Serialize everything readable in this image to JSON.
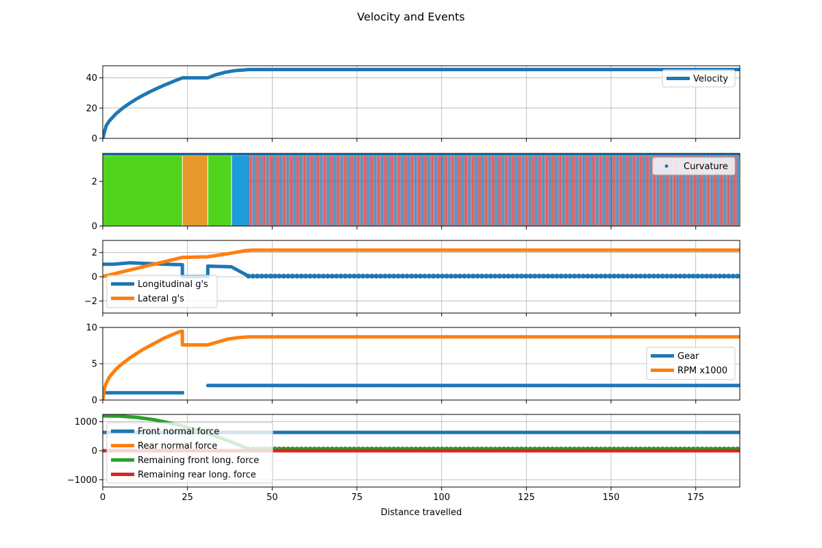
{
  "figure": {
    "title": "Velocity and Events",
    "xlabel": "Distance travelled"
  },
  "colors": {
    "blue": "#1f77b4",
    "orange": "#ff7f0e",
    "green": "#2ca02c",
    "red": "#d62728",
    "event_green": "#52d41e",
    "event_orange": "#e5992b",
    "event_blue": "#1f9bd8",
    "grid": "#b0b0b0"
  },
  "chart_data": [
    {
      "type": "line",
      "panel": "velocity",
      "xlim": [
        0,
        188
      ],
      "ylim": [
        0,
        48
      ],
      "yticks": [
        0,
        20,
        40
      ],
      "grid": true,
      "legend_position": "right",
      "series": [
        {
          "name": "Velocity",
          "color": "#1f77b4",
          "x": [
            0,
            1,
            2,
            4,
            6,
            8,
            10,
            12,
            14,
            16,
            18,
            20,
            22,
            23.5,
            31,
            33,
            36,
            39,
            42,
            43,
            188
          ],
          "y": [
            0,
            8.3,
            11.7,
            16.5,
            20.2,
            23.3,
            26.1,
            28.6,
            30.9,
            33.0,
            35.0,
            36.9,
            38.7,
            40,
            40,
            41.8,
            43.6,
            44.8,
            45.3,
            45.5,
            45.5
          ]
        }
      ]
    },
    {
      "type": "area",
      "panel": "curvature",
      "xlim": [
        0,
        188
      ],
      "ylim": [
        0,
        3.25
      ],
      "yticks": [
        0,
        2
      ],
      "grid": true,
      "legend_position": "top-right",
      "events": [
        {
          "start": 0,
          "end": 23.5,
          "color": "#52d41e"
        },
        {
          "start": 23.5,
          "end": 31,
          "color": "#e5992b"
        },
        {
          "start": 31,
          "end": 38,
          "color": "#52d41e"
        },
        {
          "start": 38,
          "end": 43,
          "color": "#1f9bd8"
        }
      ],
      "stripes": {
        "start": 43,
        "end": 188,
        "period": 0.84,
        "colors": [
          "#1f77b4",
          "#d62728"
        ],
        "top": 3.15
      },
      "series": [
        {
          "name": "Curvature",
          "color": "#1f77b4",
          "marker": "point",
          "x": [
            0,
            188
          ],
          "y": [
            3.25,
            3.25
          ]
        }
      ]
    },
    {
      "type": "line",
      "panel": "g-forces",
      "xlim": [
        0,
        188
      ],
      "ylim": [
        -3,
        3
      ],
      "yticks": [
        -2,
        0,
        2
      ],
      "grid": true,
      "legend_position": "bottom-left",
      "series": [
        {
          "name": "Longitudinal g's",
          "color": "#1f77b4",
          "x": [
            0,
            3,
            8,
            14,
            20,
            23.5,
            23.5,
            31,
            31,
            38,
            43,
            188
          ],
          "y": [
            1.03,
            1.03,
            1.15,
            1.08,
            1.02,
            1.0,
            0.02,
            0.02,
            0.88,
            0.82,
            0.05,
            0.05
          ],
          "dotted_from": 43
        },
        {
          "name": "Lateral g's",
          "color": "#ff7f0e",
          "x": [
            0,
            23.5,
            31,
            38,
            42,
            44,
            188
          ],
          "y": [
            0.02,
            1.6,
            1.65,
            1.95,
            2.15,
            2.2,
            2.2
          ]
        }
      ]
    },
    {
      "type": "line",
      "panel": "gear-rpm",
      "xlim": [
        0,
        188
      ],
      "ylim": [
        0,
        10
      ],
      "yticks": [
        0,
        5,
        10
      ],
      "grid": true,
      "legend_position": "right",
      "series": [
        {
          "name": "Gear",
          "color": "#1f77b4",
          "segments": [
            {
              "x": [
                0,
                24
              ],
              "y": [
                1,
                1
              ]
            },
            {
              "x": [
                31,
                188
              ],
              "y": [
                2,
                2
              ]
            }
          ]
        },
        {
          "name": "RPM x1000",
          "color": "#ff7f0e",
          "x": [
            0,
            0.5,
            1,
            2,
            4,
            6,
            8,
            10,
            12,
            14,
            16,
            18,
            20,
            22,
            23.5,
            23.5,
            31,
            34,
            37,
            40,
            43,
            188
          ],
          "y": [
            0,
            1.6,
            2.3,
            3.2,
            4.3,
            5.1,
            5.8,
            6.4,
            7.0,
            7.5,
            8.0,
            8.5,
            8.9,
            9.3,
            9.5,
            7.6,
            7.6,
            8.0,
            8.4,
            8.6,
            8.7,
            8.7
          ]
        }
      ]
    },
    {
      "type": "line",
      "panel": "forces",
      "xlim": [
        0,
        188
      ],
      "ylim": [
        -1250,
        1250
      ],
      "yticks": [
        -1000,
        0,
        1000
      ],
      "xticks": [
        0,
        25,
        50,
        75,
        100,
        125,
        150,
        175
      ],
      "grid": true,
      "legend_position": "top-left",
      "series": [
        {
          "name": "Front normal force",
          "color": "#1f77b4",
          "x": [
            0,
            188
          ],
          "y": [
            630,
            630
          ]
        },
        {
          "name": "Rear normal force",
          "color": "#ff7f0e",
          "x": [
            0,
            188
          ],
          "y": [
            0,
            0
          ]
        },
        {
          "name": "Remaining front long. force",
          "color": "#2ca02c",
          "x": [
            0,
            5,
            10,
            15,
            20,
            23.5,
            31,
            38,
            43,
            188
          ],
          "y": [
            1200,
            1190,
            1150,
            1070,
            950,
            850,
            600,
            300,
            60,
            60
          ],
          "dotted_from": 43
        },
        {
          "name": "Remaining rear long. force",
          "color": "#d62728",
          "x": [
            0,
            188
          ],
          "y": [
            0,
            0
          ]
        }
      ]
    }
  ]
}
